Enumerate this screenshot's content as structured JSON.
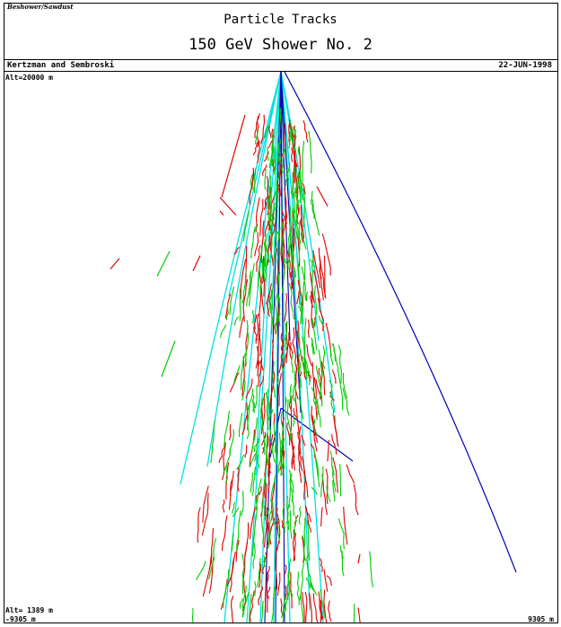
{
  "header": {
    "logo_text": "Beshower/Sawdust",
    "title": "Particle Tracks",
    "subtitle": "150 GeV Shower No. 2",
    "authors": "Kertzman and Sembroski",
    "date": "22-JUN-1998"
  },
  "plot": {
    "alt_top_label": "Alt=20000 m",
    "alt_bottom_label": "Alt= 1389 m",
    "x_min_label": "-9305 m",
    "x_max_label": "9305 m",
    "colors": {
      "electron": "#e00000",
      "positron": "#00cc00",
      "muon": "#00e0e0",
      "hadron": "#0000b0"
    }
  }
}
